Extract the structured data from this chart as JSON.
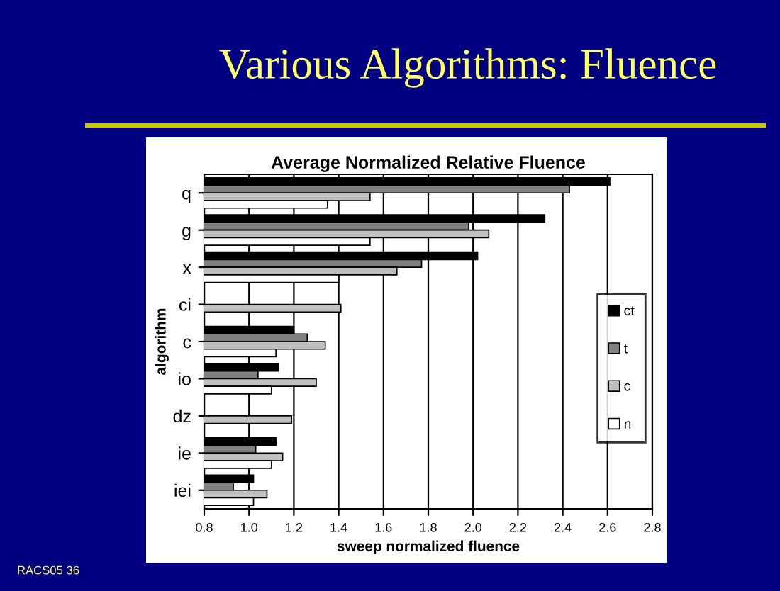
{
  "chart_data": {
    "type": "bar",
    "orientation": "horizontal",
    "title": "Various Algorithms: Fluence",
    "subtitle": "Average Normalized Relative Fluence",
    "xlabel": "sweep normalized fluence",
    "ylabel": "algorithm",
    "categories": [
      "q",
      "g",
      "x",
      "ci",
      "c",
      "io",
      "dz",
      "ie",
      "iei"
    ],
    "series": [
      {
        "name": "ct",
        "color": "#000000",
        "values": [
          2.61,
          2.32,
          2.02,
          null,
          1.2,
          1.13,
          null,
          1.12,
          1.02
        ]
      },
      {
        "name": "t",
        "color": "#808080",
        "values": [
          2.43,
          1.98,
          1.77,
          null,
          1.26,
          1.04,
          null,
          1.03,
          0.93
        ]
      },
      {
        "name": "c",
        "color": "#c0c0c0",
        "values": [
          1.54,
          2.07,
          1.66,
          1.41,
          1.34,
          1.3,
          1.19,
          1.15,
          1.08
        ]
      },
      {
        "name": "n",
        "color": "#ffffff",
        "values": [
          1.35,
          1.54,
          1.4,
          null,
          1.12,
          1.1,
          null,
          1.1,
          1.02
        ]
      }
    ],
    "xlim": [
      0.8,
      2.8
    ],
    "xticks": [
      {
        "value": 0.8,
        "label": "0.8"
      },
      {
        "value": 1.0,
        "label": "1.0"
      },
      {
        "value": 1.2,
        "label": "1.2"
      },
      {
        "value": 1.4,
        "label": "1.4"
      },
      {
        "value": 1.6,
        "label": "1.6"
      },
      {
        "value": 1.8,
        "label": "1.8"
      },
      {
        "value": 2.0,
        "label": "2.0"
      },
      {
        "value": 2.2,
        "label": "2.2"
      },
      {
        "value": 2.4,
        "label": "2.4"
      },
      {
        "value": 2.6,
        "label": "2.6"
      },
      {
        "value": 2.8,
        "label": "2.8"
      }
    ],
    "grid": "x",
    "legend": "right",
    "annotations": [
      "RACS05 36"
    ]
  }
}
